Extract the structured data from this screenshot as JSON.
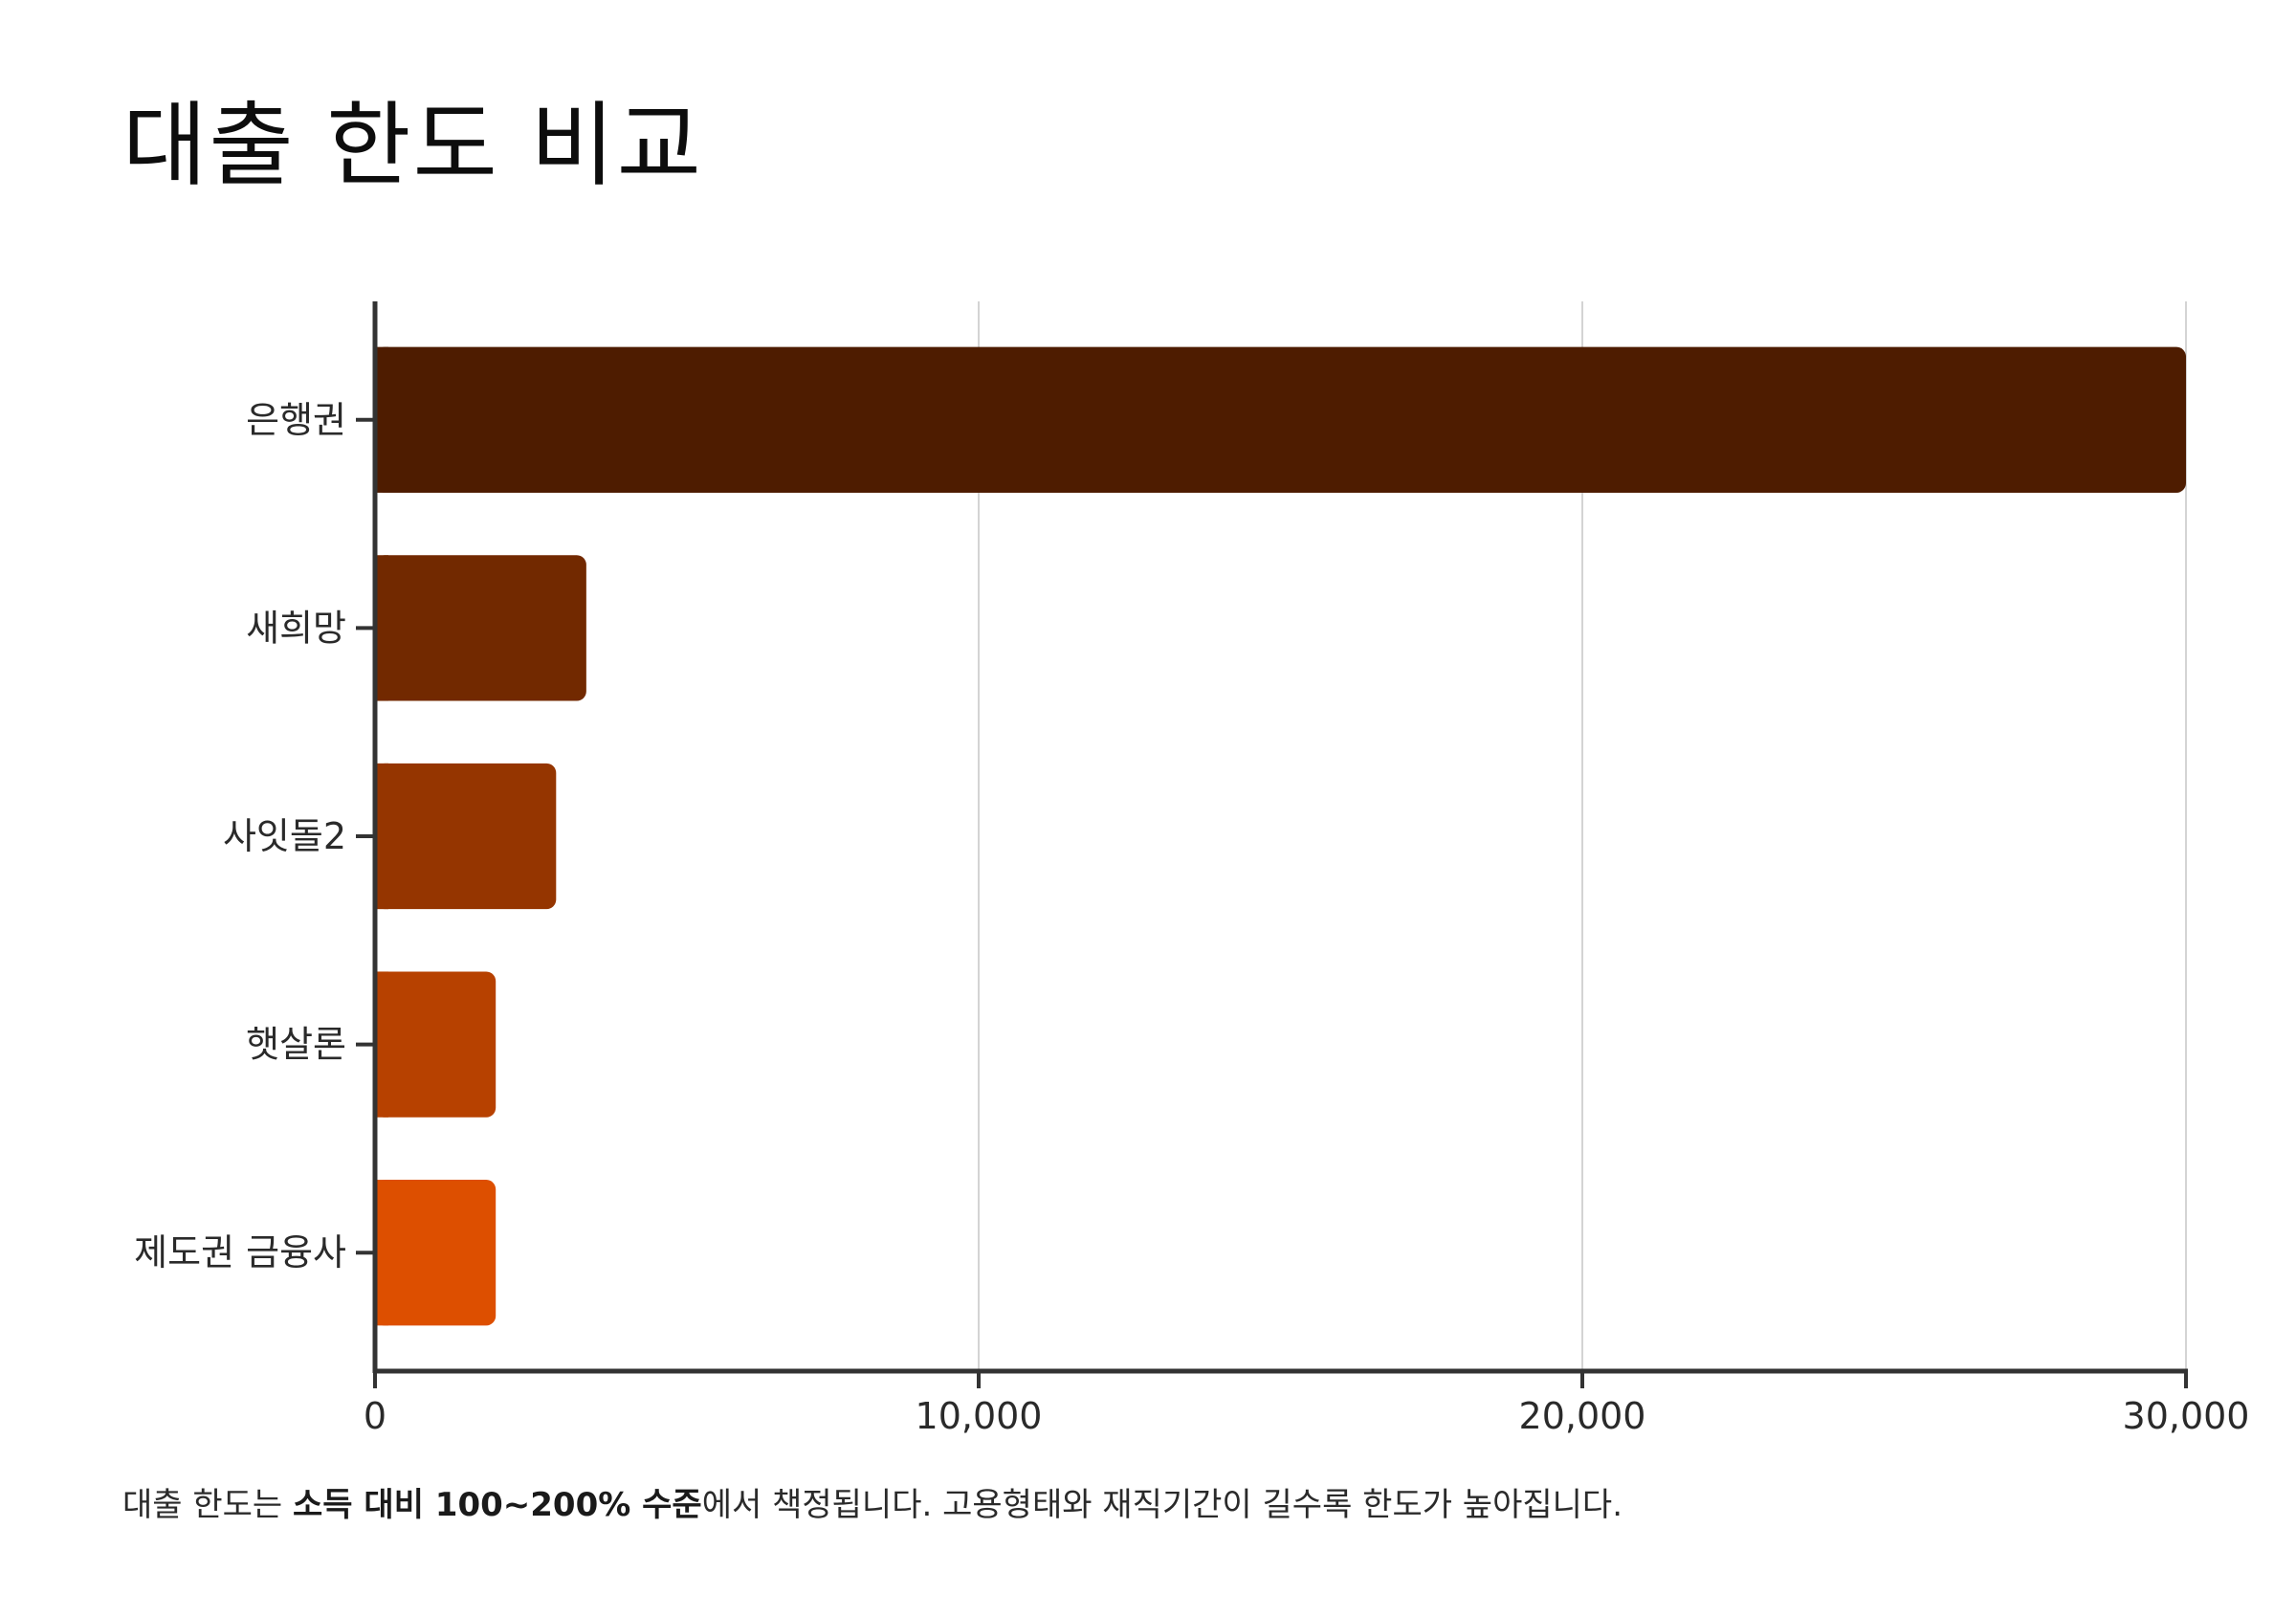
{
  "chart_data": {
    "type": "bar",
    "orientation": "horizontal",
    "title": "대출 한도 비교",
    "categories": [
      "은행권",
      "새희망",
      "사잇돌2",
      "햇살론",
      "제도권 금융사"
    ],
    "values": [
      30000,
      3500,
      3000,
      2000,
      2000
    ],
    "colors": [
      "#4e1c00",
      "#722900",
      "#953500",
      "#b74100",
      "#dd4f00"
    ],
    "xlim": [
      0,
      30000
    ],
    "xticks": [
      0,
      10000,
      20000,
      30000
    ],
    "xtick_labels": [
      "0",
      "10,000",
      "20,000",
      "30,000"
    ],
    "xlabel": "",
    "ylabel": "",
    "grid": "vertical",
    "legend": "none"
  },
  "footnote": {
    "pre": "대출 한도는 ",
    "bold": "소득 대비 100~200% 수준",
    "post": "에서 책정됩니다. 고용형태와 재직기간이 길수록 한도가 높아집니다."
  },
  "colors": {
    "axis": "#333333",
    "grid": "#d4d4d4",
    "text": "#2a2a2a"
  }
}
